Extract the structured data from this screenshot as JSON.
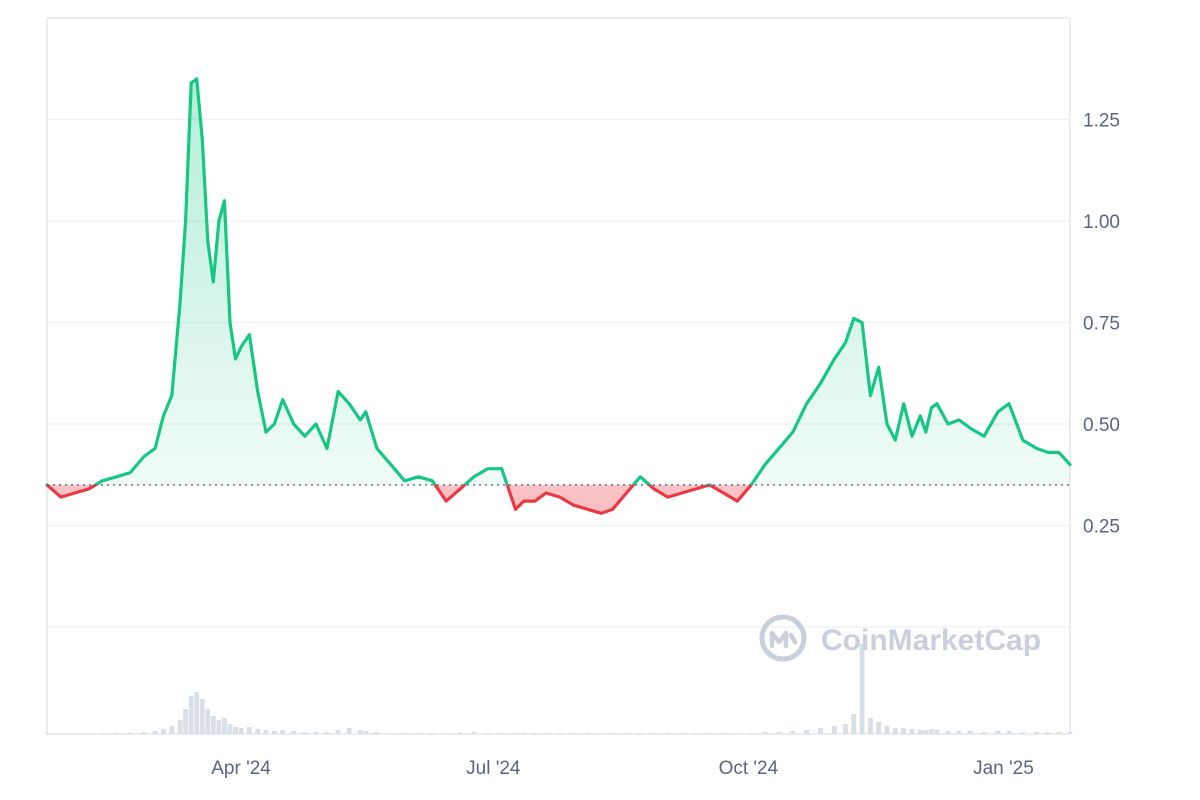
{
  "brand": {
    "watermark": "CoinMarketCap",
    "watermark_color": "#c9d0dc"
  },
  "colors": {
    "up": "#16c784",
    "down": "#ea3943",
    "baseline": "#58667e",
    "grid": "#eff2f5",
    "volume": "#d9dfe6",
    "axis_text": "#58667e"
  },
  "chart_data": {
    "type": "area",
    "title": "",
    "xlabel": "",
    "ylabel": "",
    "x_axis": {
      "ticks": [
        "Apr '24",
        "Jul '24",
        "Oct '24",
        "Jan '25"
      ],
      "range": [
        "2024-01-22",
        "2025-01-25"
      ]
    },
    "y_axis": {
      "position": "right",
      "ticks": [
        "0.25",
        "0.50",
        "0.75",
        "1.00",
        "1.25"
      ],
      "range": [
        0,
        1.5
      ]
    },
    "baseline": 0.35,
    "grid": true,
    "legend": "none",
    "series": [
      {
        "x": [
          "2024-01-22",
          "2024-01-27",
          "2024-02-01",
          "2024-02-06",
          "2024-02-11",
          "2024-02-16",
          "2024-02-21",
          "2024-02-26",
          "2024-03-01",
          "2024-03-04",
          "2024-03-07",
          "2024-03-10",
          "2024-03-12",
          "2024-03-14",
          "2024-03-16",
          "2024-03-18",
          "2024-03-20",
          "2024-03-22",
          "2024-03-24",
          "2024-03-26",
          "2024-03-28",
          "2024-03-30",
          "2024-04-01",
          "2024-04-04",
          "2024-04-07",
          "2024-04-10",
          "2024-04-13",
          "2024-04-16",
          "2024-04-20",
          "2024-04-24",
          "2024-04-28",
          "2024-05-02",
          "2024-05-06",
          "2024-05-10",
          "2024-05-14",
          "2024-05-16",
          "2024-05-20",
          "2024-05-25",
          "2024-05-30",
          "2024-06-04",
          "2024-06-09",
          "2024-06-14",
          "2024-06-19",
          "2024-06-24",
          "2024-06-29",
          "2024-07-04",
          "2024-07-09",
          "2024-07-12",
          "2024-07-16",
          "2024-07-20",
          "2024-07-25",
          "2024-07-30",
          "2024-08-04",
          "2024-08-09",
          "2024-08-13",
          "2024-08-18",
          "2024-08-23",
          "2024-08-28",
          "2024-09-02",
          "2024-09-07",
          "2024-09-12",
          "2024-09-17",
          "2024-09-22",
          "2024-09-27",
          "2024-10-02",
          "2024-10-07",
          "2024-10-12",
          "2024-10-17",
          "2024-10-22",
          "2024-10-27",
          "2024-11-01",
          "2024-11-05",
          "2024-11-08",
          "2024-11-11",
          "2024-11-14",
          "2024-11-17",
          "2024-11-20",
          "2024-11-23",
          "2024-11-26",
          "2024-11-29",
          "2024-12-02",
          "2024-12-04",
          "2024-12-06",
          "2024-12-08",
          "2024-12-12",
          "2024-12-16",
          "2024-12-20",
          "2024-12-25",
          "2024-12-30",
          "2025-01-03",
          "2025-01-08",
          "2025-01-13",
          "2025-01-17",
          "2025-01-21",
          "2025-01-25"
        ],
        "y": [
          0.35,
          0.32,
          0.33,
          0.34,
          0.36,
          0.37,
          0.38,
          0.42,
          0.44,
          0.52,
          0.57,
          0.8,
          1.0,
          1.34,
          1.35,
          1.2,
          0.95,
          0.85,
          1.0,
          1.05,
          0.75,
          0.66,
          0.69,
          0.72,
          0.58,
          0.48,
          0.5,
          0.56,
          0.5,
          0.47,
          0.5,
          0.44,
          0.58,
          0.55,
          0.51,
          0.53,
          0.44,
          0.4,
          0.36,
          0.37,
          0.36,
          0.31,
          0.34,
          0.37,
          0.39,
          0.39,
          0.29,
          0.31,
          0.31,
          0.33,
          0.32,
          0.3,
          0.29,
          0.28,
          0.29,
          0.33,
          0.37,
          0.34,
          0.32,
          0.33,
          0.34,
          0.35,
          0.33,
          0.31,
          0.35,
          0.4,
          0.44,
          0.48,
          0.55,
          0.6,
          0.66,
          0.7,
          0.76,
          0.75,
          0.57,
          0.64,
          0.5,
          0.46,
          0.55,
          0.47,
          0.52,
          0.48,
          0.54,
          0.55,
          0.5,
          0.51,
          0.49,
          0.47,
          0.53,
          0.55,
          0.46,
          0.44,
          0.43,
          0.43,
          0.4
        ]
      }
    ],
    "volume": [
      0.006,
      0.004,
      0.005,
      0.006,
      0.008,
      0.01,
      0.012,
      0.02,
      0.03,
      0.05,
      0.08,
      0.14,
      0.25,
      0.38,
      0.42,
      0.35,
      0.25,
      0.18,
      0.14,
      0.16,
      0.1,
      0.07,
      0.06,
      0.07,
      0.05,
      0.04,
      0.03,
      0.04,
      0.03,
      0.02,
      0.02,
      0.02,
      0.04,
      0.06,
      0.04,
      0.03,
      0.02,
      0.01,
      0.01,
      0.01,
      0.01,
      0.01,
      0.015,
      0.02,
      0.01,
      0.01,
      0.01,
      0.01,
      0.01,
      0.01,
      0.01,
      0.01,
      0.01,
      0.01,
      0.01,
      0.01,
      0.01,
      0.01,
      0.01,
      0.01,
      0.01,
      0.01,
      0.01,
      0.01,
      0.01,
      0.02,
      0.02,
      0.03,
      0.04,
      0.06,
      0.08,
      0.1,
      0.2,
      0.9,
      0.16,
      0.12,
      0.08,
      0.06,
      0.06,
      0.05,
      0.04,
      0.04,
      0.05,
      0.04,
      0.03,
      0.03,
      0.03,
      0.02,
      0.03,
      0.03,
      0.02,
      0.02,
      0.02,
      0.02,
      0.02
    ]
  }
}
